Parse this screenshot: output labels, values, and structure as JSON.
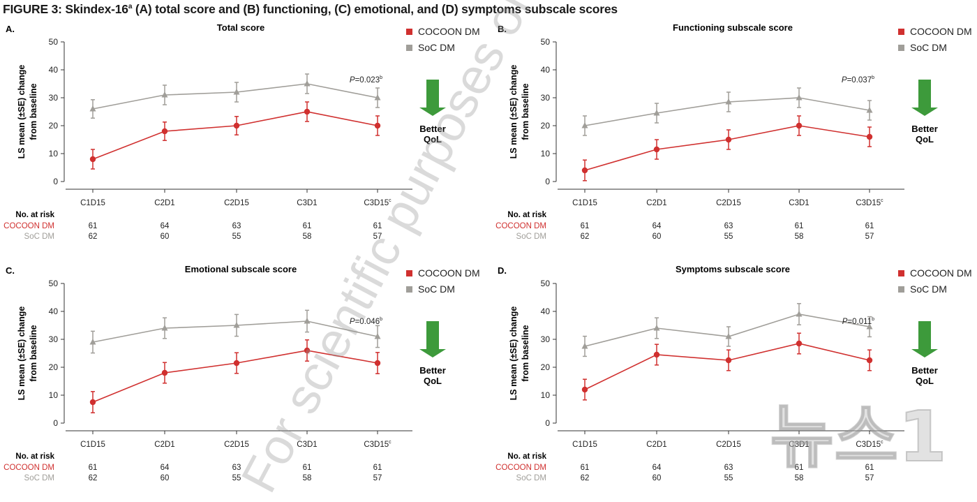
{
  "figure": {
    "title_main": "FIGURE 3: Skindex-16",
    "title_sup": "a",
    "title_rest": " (A) total score and (B) functioning, (C) emotional, and (D) symptoms subscale scores"
  },
  "watermark_text": "For scientific purposes on J&J Medical Connect",
  "news_logo_text": "뉴스1",
  "colors": {
    "cocoon": "#d0302f",
    "soc": "#a09e99",
    "arrow": "#3d9a3b",
    "axis": "#333333"
  },
  "chart_data": [
    {
      "type": "line",
      "panel_label": "A.",
      "title": "Total score",
      "ylabel_line1": "LS mean (±SE) change",
      "ylabel_line2": "from baseline",
      "categories": [
        "C1D15",
        "C2D1",
        "C2D15",
        "C3D1",
        "C3D15"
      ],
      "last_category_sup": "c",
      "ylim": [
        0,
        50
      ],
      "yticks": [
        0,
        10,
        20,
        30,
        40,
        50
      ],
      "series": [
        {
          "name": "COCOON DM",
          "marker": "circle",
          "values": [
            8,
            18,
            20,
            25,
            20
          ],
          "se": [
            3.5,
            3.3,
            3.3,
            3.5,
            3.5
          ]
        },
        {
          "name": "SoC DM",
          "marker": "triangle",
          "values": [
            26,
            31,
            32,
            35,
            30
          ],
          "se": [
            3.3,
            3.5,
            3.5,
            3.5,
            3.5
          ]
        }
      ],
      "pvalue_prefix": "P",
      "pvalue_text": "=0.023",
      "pvalue_sup": "b",
      "better_line1": "Better",
      "better_line2": "QoL",
      "risk_header": "No. at risk",
      "risk": [
        {
          "name": "COCOON DM",
          "counts": [
            "61",
            "64",
            "63",
            "61",
            "61"
          ]
        },
        {
          "name": "SoC DM",
          "counts": [
            "62",
            "60",
            "55",
            "58",
            "57"
          ]
        }
      ]
    },
    {
      "type": "line",
      "panel_label": "B.",
      "title": "Functioning subscale score",
      "ylabel_line1": "LS mean (±SE) change",
      "ylabel_line2": "from baseline",
      "categories": [
        "C1D15",
        "C2D1",
        "C2D15",
        "C3D1",
        "C3D15"
      ],
      "last_category_sup": "c",
      "ylim": [
        0,
        50
      ],
      "yticks": [
        0,
        10,
        20,
        30,
        40,
        50
      ],
      "series": [
        {
          "name": "COCOON DM",
          "marker": "circle",
          "values": [
            4,
            11.5,
            15,
            20,
            16
          ],
          "se": [
            3.7,
            3.5,
            3.5,
            3.5,
            3.5
          ]
        },
        {
          "name": "SoC DM",
          "marker": "triangle",
          "values": [
            20,
            24.5,
            28.5,
            30,
            25.5
          ],
          "se": [
            3.5,
            3.5,
            3.5,
            3.5,
            3.5
          ]
        }
      ],
      "pvalue_prefix": "P",
      "pvalue_text": "=0.037",
      "pvalue_sup": "b",
      "better_line1": "Better",
      "better_line2": "QoL",
      "risk_header": "No. at risk",
      "risk": [
        {
          "name": "COCOON DM",
          "counts": [
            "61",
            "64",
            "63",
            "61",
            "61"
          ]
        },
        {
          "name": "SoC DM",
          "counts": [
            "62",
            "60",
            "55",
            "58",
            "57"
          ]
        }
      ]
    },
    {
      "type": "line",
      "panel_label": "C.",
      "title": "Emotional subscale score",
      "ylabel_line1": "LS mean (±SE) change",
      "ylabel_line2": "from baseline",
      "categories": [
        "C1D15",
        "C2D1",
        "C2D15",
        "C3D1",
        "C3D15"
      ],
      "last_category_sup": "c",
      "ylim": [
        0,
        50
      ],
      "yticks": [
        0,
        10,
        20,
        30,
        40,
        50
      ],
      "series": [
        {
          "name": "COCOON DM",
          "marker": "circle",
          "values": [
            7.5,
            18,
            21.5,
            26,
            21.5
          ],
          "se": [
            3.8,
            3.7,
            3.7,
            3.8,
            3.8
          ]
        },
        {
          "name": "SoC DM",
          "marker": "triangle",
          "values": [
            29,
            34,
            35,
            36.5,
            31
          ],
          "se": [
            3.9,
            3.7,
            3.9,
            3.9,
            3.9
          ]
        }
      ],
      "pvalue_prefix": "P",
      "pvalue_text": "=0.046",
      "pvalue_sup": "b",
      "better_line1": "Better",
      "better_line2": "QoL",
      "risk_header": "No. at risk",
      "risk": [
        {
          "name": "COCOON DM",
          "counts": [
            "61",
            "64",
            "63",
            "61",
            "61"
          ]
        },
        {
          "name": "SoC DM",
          "counts": [
            "62",
            "60",
            "55",
            "58",
            "57"
          ]
        }
      ]
    },
    {
      "type": "line",
      "panel_label": "D.",
      "title": "Symptoms subscale score",
      "ylabel_line1": "LS mean (±SE) change",
      "ylabel_line2": "from baseline",
      "categories": [
        "C1D15",
        "C2D1",
        "C2D15",
        "C3D1",
        "C3D15"
      ],
      "last_category_sup": "c",
      "ylim": [
        0,
        50
      ],
      "yticks": [
        0,
        10,
        20,
        30,
        40,
        50
      ],
      "series": [
        {
          "name": "COCOON DM",
          "marker": "circle",
          "values": [
            12,
            24.5,
            22.5,
            28.5,
            22.5
          ],
          "se": [
            3.7,
            3.7,
            3.7,
            3.7,
            3.7
          ]
        },
        {
          "name": "SoC DM",
          "marker": "triangle",
          "values": [
            27.5,
            34,
            31,
            39,
            34.5
          ],
          "se": [
            3.6,
            3.7,
            3.5,
            3.8,
            3.6
          ]
        }
      ],
      "pvalue_prefix": "P",
      "pvalue_text": "=0.011",
      "pvalue_sup": "b",
      "better_line1": "Better",
      "better_line2": "QoL",
      "risk_header": "No. at risk",
      "risk": [
        {
          "name": "COCOON DM",
          "counts": [
            "61",
            "64",
            "63",
            "61",
            "61"
          ]
        },
        {
          "name": "SoC DM",
          "counts": [
            "62",
            "60",
            "55",
            "58",
            "57"
          ]
        }
      ]
    }
  ]
}
